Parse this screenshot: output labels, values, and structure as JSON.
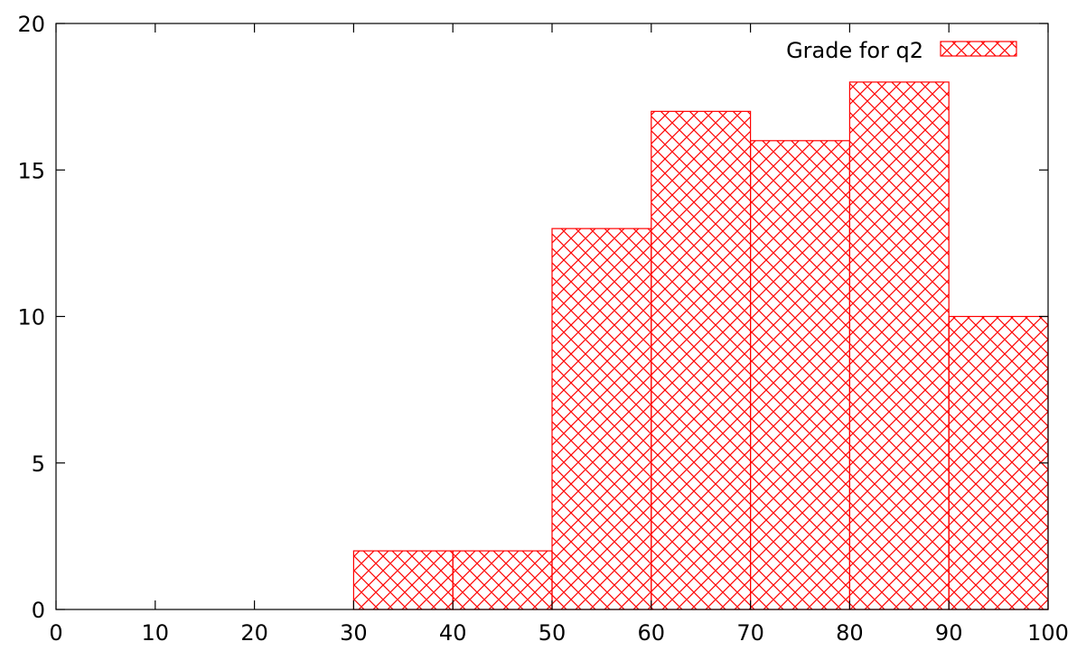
{
  "chart_data": {
    "type": "bar",
    "title": "",
    "xlabel": "",
    "ylabel": "",
    "bins": [
      {
        "x_start": 30,
        "x_end": 40,
        "value": 2
      },
      {
        "x_start": 40,
        "x_end": 50,
        "value": 2
      },
      {
        "x_start": 50,
        "x_end": 60,
        "value": 13
      },
      {
        "x_start": 60,
        "x_end": 70,
        "value": 17
      },
      {
        "x_start": 70,
        "x_end": 80,
        "value": 16
      },
      {
        "x_start": 80,
        "x_end": 90,
        "value": 18
      },
      {
        "x_start": 90,
        "x_end": 100,
        "value": 10
      }
    ],
    "series": [
      {
        "name": "Grade for q2",
        "color": "#ff0000",
        "fill": "crosshatch"
      }
    ],
    "xlim": [
      0,
      100
    ],
    "ylim": [
      0,
      20
    ],
    "x_ticks": [
      0,
      10,
      20,
      30,
      40,
      50,
      60,
      70,
      80,
      90,
      100
    ],
    "y_ticks": [
      0,
      5,
      10,
      15,
      20
    ],
    "legend_position": "top-right",
    "grid": false
  }
}
